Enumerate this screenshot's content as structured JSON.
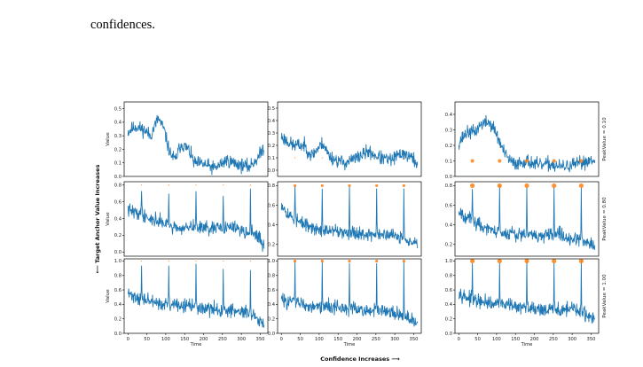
{
  "caption": {
    "line1": "",
    "line2": "confidences."
  },
  "figure": {
    "x_axis_title": "Confidence Increases ⟶",
    "y_axis_title": "⟵ Target Anchor Value Increases",
    "panel_xlabel": "Time",
    "panel_ylabel": "Value",
    "row_labels": [
      "PeakValue = 0.10",
      "PeakValue = 0.80",
      "PeakValue = 1.00"
    ],
    "line_color": "#1f77b4",
    "marker_color": "#ff7f0e"
  },
  "chart_data": [
    {
      "type": "line",
      "row": 0,
      "col": 0,
      "ylabel": "Value",
      "ylim": [
        0,
        0.55
      ],
      "yticks": [
        "0.0",
        "0.1",
        "0.2",
        "0.3",
        "0.4",
        "0.5"
      ],
      "xlim": [
        -10,
        370
      ],
      "xticks": [],
      "peak_value": 0.1,
      "marker_size": 0,
      "peaks_x": [],
      "seed": 11,
      "trend": [
        [
          0,
          0.33
        ],
        [
          20,
          0.37
        ],
        [
          45,
          0.34
        ],
        [
          60,
          0.3
        ],
        [
          80,
          0.43
        ],
        [
          95,
          0.35
        ],
        [
          110,
          0.18
        ],
        [
          125,
          0.12
        ],
        [
          140,
          0.24
        ],
        [
          160,
          0.2
        ],
        [
          175,
          0.1
        ],
        [
          200,
          0.09
        ],
        [
          230,
          0.06
        ],
        [
          260,
          0.12
        ],
        [
          290,
          0.09
        ],
        [
          320,
          0.07
        ],
        [
          345,
          0.14
        ],
        [
          360,
          0.22
        ]
      ]
    },
    {
      "type": "line",
      "row": 0,
      "col": 1,
      "ylabel": "",
      "ylim": [
        -0.05,
        0.55
      ],
      "yticks": [
        "0.0",
        "0.1",
        "0.2",
        "0.3",
        "0.4",
        "0.5"
      ],
      "xlim": [
        -10,
        370
      ],
      "xticks": [],
      "peak_value": 0.1,
      "marker_size": 0.6,
      "peaks_x": [
        36,
        108,
        180,
        252,
        324
      ],
      "seed": 23,
      "trend": [
        [
          0,
          0.27
        ],
        [
          30,
          0.2
        ],
        [
          60,
          0.2
        ],
        [
          80,
          0.12
        ],
        [
          110,
          0.22
        ],
        [
          125,
          0.12
        ],
        [
          145,
          0.08
        ],
        [
          170,
          0.06
        ],
        [
          200,
          0.1
        ],
        [
          230,
          0.15
        ],
        [
          260,
          0.1
        ],
        [
          290,
          0.08
        ],
        [
          320,
          0.14
        ],
        [
          345,
          0.1
        ],
        [
          360,
          0.05
        ]
      ]
    },
    {
      "type": "line",
      "row": 0,
      "col": 2,
      "ylabel": "",
      "ylim": [
        0,
        0.48
      ],
      "yticks": [
        "0.0",
        "0.1",
        "0.2",
        "0.3",
        "0.4"
      ],
      "xlim": [
        -10,
        370
      ],
      "xticks": [],
      "peak_value": 0.1,
      "marker_size": 2,
      "peaks_x": [
        36,
        108,
        180,
        252,
        324
      ],
      "seed": 37,
      "trend": [
        [
          0,
          0.22
        ],
        [
          20,
          0.28
        ],
        [
          45,
          0.29
        ],
        [
          60,
          0.34
        ],
        [
          80,
          0.35
        ],
        [
          95,
          0.3
        ],
        [
          108,
          0.22
        ],
        [
          125,
          0.13
        ],
        [
          145,
          0.08
        ],
        [
          180,
          0.1
        ],
        [
          210,
          0.07
        ],
        [
          240,
          0.08
        ],
        [
          270,
          0.06
        ],
        [
          300,
          0.07
        ],
        [
          330,
          0.09
        ],
        [
          360,
          0.12
        ]
      ]
    },
    {
      "type": "line",
      "row": 1,
      "col": 0,
      "ylabel": "Value",
      "ylim": [
        -0.05,
        0.84
      ],
      "yticks": [
        "0.0",
        "0.2",
        "0.4",
        "0.6",
        "0.8"
      ],
      "xlim": [
        -10,
        370
      ],
      "xticks": [],
      "peak_value": 0.8,
      "marker_size": 0.6,
      "peaks_x": [
        36,
        108,
        180,
        252,
        324
      ],
      "seed": 41,
      "trend": [
        [
          0,
          0.5
        ],
        [
          30,
          0.46
        ],
        [
          60,
          0.4
        ],
        [
          100,
          0.34
        ],
        [
          140,
          0.28
        ],
        [
          180,
          0.3
        ],
        [
          220,
          0.27
        ],
        [
          260,
          0.3
        ],
        [
          300,
          0.27
        ],
        [
          330,
          0.22
        ],
        [
          350,
          0.15
        ],
        [
          360,
          0.05
        ]
      ]
    },
    {
      "type": "line",
      "row": 1,
      "col": 1,
      "ylabel": "",
      "ylim": [
        0.08,
        0.84
      ],
      "yticks": [
        "0.2",
        "0.4",
        "0.6",
        "0.8"
      ],
      "xlim": [
        -10,
        370
      ],
      "xticks": [],
      "peak_value": 0.8,
      "marker_size": 1.6,
      "peaks_x": [
        36,
        108,
        180,
        252,
        324
      ],
      "seed": 53,
      "trend": [
        [
          0,
          0.62
        ],
        [
          20,
          0.5
        ],
        [
          50,
          0.42
        ],
        [
          90,
          0.36
        ],
        [
          130,
          0.33
        ],
        [
          170,
          0.33
        ],
        [
          210,
          0.31
        ],
        [
          250,
          0.3
        ],
        [
          290,
          0.29
        ],
        [
          330,
          0.26
        ],
        [
          360,
          0.21
        ]
      ]
    },
    {
      "type": "line",
      "row": 1,
      "col": 2,
      "ylabel": "",
      "ylim": [
        0.08,
        0.84
      ],
      "yticks": [
        "0.2",
        "0.4",
        "0.6",
        "0.8"
      ],
      "xlim": [
        -10,
        370
      ],
      "xticks": [],
      "peak_value": 0.8,
      "marker_size": 2.6,
      "peaks_x": [
        36,
        108,
        180,
        252,
        324
      ],
      "seed": 67,
      "trend": [
        [
          0,
          0.55
        ],
        [
          20,
          0.48
        ],
        [
          60,
          0.38
        ],
        [
          100,
          0.33
        ],
        [
          140,
          0.32
        ],
        [
          180,
          0.3
        ],
        [
          220,
          0.28
        ],
        [
          260,
          0.3
        ],
        [
          300,
          0.27
        ],
        [
          330,
          0.24
        ],
        [
          360,
          0.2
        ]
      ]
    },
    {
      "type": "line",
      "row": 2,
      "col": 0,
      "ylabel": "Value",
      "ylim": [
        0,
        1.03
      ],
      "yticks": [
        "0.0",
        "0.2",
        "0.4",
        "0.6",
        "0.8",
        "1.0"
      ],
      "xlim": [
        -10,
        370
      ],
      "xticks": [
        "0",
        "50",
        "100",
        "150",
        "200",
        "250",
        "300",
        "350"
      ],
      "xlabel": "Time",
      "peak_value": 1.0,
      "marker_size": 0.6,
      "peaks_x": [
        36,
        108,
        180,
        252,
        324
      ],
      "seed": 71,
      "trend": [
        [
          0,
          0.55
        ],
        [
          30,
          0.48
        ],
        [
          60,
          0.44
        ],
        [
          100,
          0.4
        ],
        [
          140,
          0.38
        ],
        [
          180,
          0.36
        ],
        [
          220,
          0.33
        ],
        [
          260,
          0.32
        ],
        [
          300,
          0.3
        ],
        [
          330,
          0.24
        ],
        [
          350,
          0.15
        ],
        [
          360,
          0.08
        ]
      ]
    },
    {
      "type": "line",
      "row": 2,
      "col": 1,
      "ylabel": "",
      "ylim": [
        0,
        1.03
      ],
      "yticks": [
        "0.0",
        "0.2",
        "0.4",
        "0.6",
        "0.8",
        "1.0"
      ],
      "xlim": [
        -10,
        370
      ],
      "xticks": [
        "0",
        "50",
        "100",
        "150",
        "200",
        "250",
        "300",
        "350"
      ],
      "xlabel": "Time",
      "peak_value": 1.0,
      "marker_size": 1.6,
      "peaks_x": [
        36,
        108,
        180,
        252,
        324
      ],
      "seed": 83,
      "trend": [
        [
          0,
          0.46
        ],
        [
          30,
          0.44
        ],
        [
          60,
          0.4
        ],
        [
          100,
          0.38
        ],
        [
          140,
          0.36
        ],
        [
          180,
          0.34
        ],
        [
          220,
          0.32
        ],
        [
          260,
          0.3
        ],
        [
          300,
          0.28
        ],
        [
          330,
          0.22
        ],
        [
          360,
          0.12
        ]
      ]
    },
    {
      "type": "line",
      "row": 2,
      "col": 2,
      "ylabel": "",
      "ylim": [
        0,
        1.03
      ],
      "yticks": [
        "0.0",
        "0.2",
        "0.4",
        "0.6",
        "0.8",
        "1.0"
      ],
      "xlim": [
        -10,
        370
      ],
      "xticks": [
        "0",
        "50",
        "100",
        "150",
        "200",
        "250",
        "300",
        "350"
      ],
      "xlabel": "Time",
      "peak_value": 1.0,
      "marker_size": 2.6,
      "peaks_x": [
        36,
        108,
        180,
        252,
        324
      ],
      "seed": 97,
      "trend": [
        [
          0,
          0.58
        ],
        [
          20,
          0.5
        ],
        [
          60,
          0.42
        ],
        [
          100,
          0.4
        ],
        [
          140,
          0.38
        ],
        [
          180,
          0.36
        ],
        [
          220,
          0.33
        ],
        [
          260,
          0.32
        ],
        [
          300,
          0.33
        ],
        [
          330,
          0.28
        ],
        [
          360,
          0.2
        ]
      ]
    }
  ]
}
